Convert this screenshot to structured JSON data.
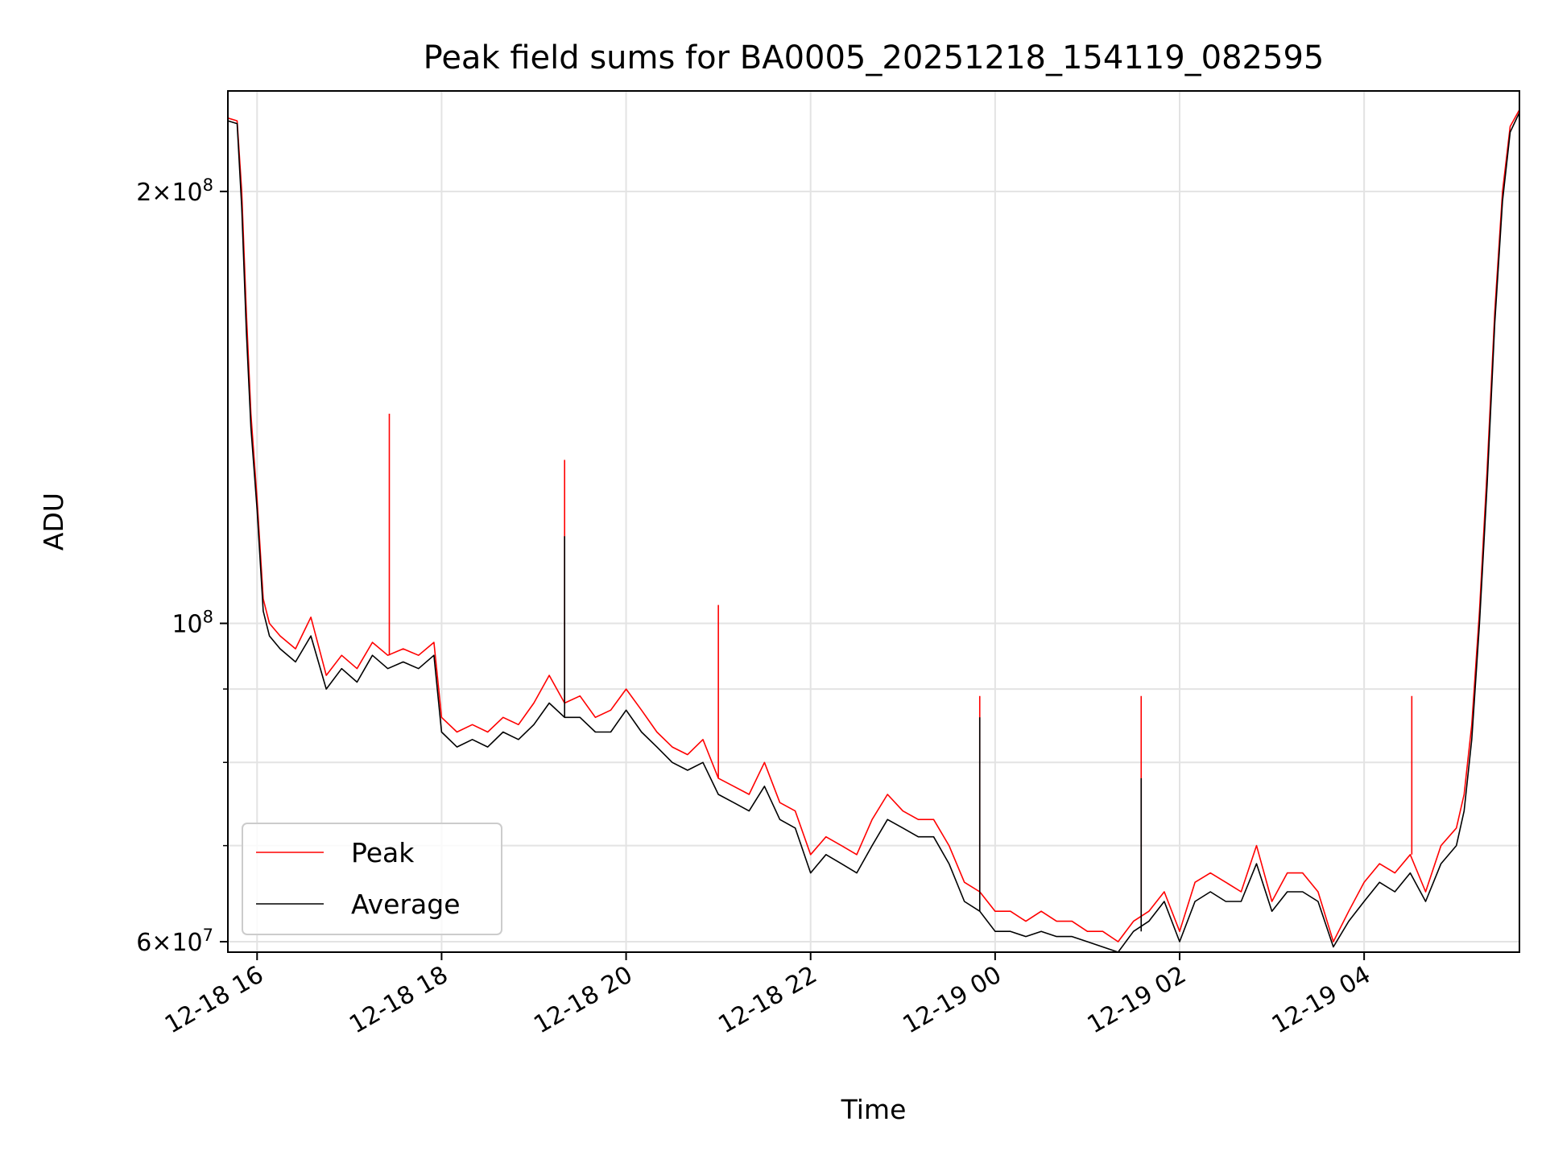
{
  "chart_data": {
    "type": "line",
    "title": "Peak field sums for BA0005_20251218_154119_082595",
    "xlabel": "Time",
    "ylabel": "ADU",
    "xlim": [
      "2025-12-18 15:41",
      "2025-12-19 05:41"
    ],
    "ylim": [
      59000000,
      235000000
    ],
    "yscale": "log",
    "grid": true,
    "legend_position": "lower-left",
    "x_ticks": [
      {
        "value": "2025-12-18 16:00",
        "label": "12-18 16"
      },
      {
        "value": "2025-12-18 18:00",
        "label": "12-18 18"
      },
      {
        "value": "2025-12-18 20:00",
        "label": "12-18 20"
      },
      {
        "value": "2025-12-18 22:00",
        "label": "12-18 22"
      },
      {
        "value": "2025-12-19 00:00",
        "label": "12-19 00"
      },
      {
        "value": "2025-12-19 02:00",
        "label": "12-19 02"
      },
      {
        "value": "2025-12-19 04:00",
        "label": "12-19 04"
      }
    ],
    "y_ticks": [
      {
        "value": 60000000,
        "base": "6",
        "exp": "7"
      },
      {
        "value": 100000000,
        "base": "",
        "exp": "8"
      },
      {
        "value": 200000000,
        "base": "2",
        "exp": "8"
      }
    ],
    "y_minor_ticks": [
      70000000,
      80000000,
      90000000
    ],
    "series": [
      {
        "name": "Peak",
        "color": "#ff0000",
        "x": [
          "2025-12-18 15:41",
          "2025-12-18 15:47",
          "2025-12-18 15:50",
          "2025-12-18 15:53",
          "2025-12-18 15:56",
          "2025-12-18 16:00",
          "2025-12-18 16:04",
          "2025-12-18 16:08",
          "2025-12-18 16:15",
          "2025-12-18 16:25",
          "2025-12-18 16:35",
          "2025-12-18 16:45",
          "2025-12-18 16:55",
          "2025-12-18 17:05",
          "2025-12-18 17:15",
          "2025-12-18 17:25",
          "2025-12-18 17:35",
          "2025-12-18 17:45",
          "2025-12-18 17:55",
          "2025-12-18 18:00",
          "2025-12-18 18:10",
          "2025-12-18 18:20",
          "2025-12-18 18:30",
          "2025-12-18 18:40",
          "2025-12-18 18:50",
          "2025-12-18 19:00",
          "2025-12-18 19:10",
          "2025-12-18 19:20",
          "2025-12-18 19:30",
          "2025-12-18 19:40",
          "2025-12-18 19:50",
          "2025-12-18 20:00",
          "2025-12-18 20:10",
          "2025-12-18 20:20",
          "2025-12-18 20:30",
          "2025-12-18 20:40",
          "2025-12-18 20:50",
          "2025-12-18 21:00",
          "2025-12-18 21:10",
          "2025-12-18 21:20",
          "2025-12-18 21:30",
          "2025-12-18 21:40",
          "2025-12-18 21:50",
          "2025-12-18 22:00",
          "2025-12-18 22:10",
          "2025-12-18 22:20",
          "2025-12-18 22:30",
          "2025-12-18 22:40",
          "2025-12-18 22:50",
          "2025-12-18 23:00",
          "2025-12-18 23:10",
          "2025-12-18 23:20",
          "2025-12-18 23:30",
          "2025-12-18 23:40",
          "2025-12-18 23:50",
          "2025-12-19 00:00",
          "2025-12-19 00:10",
          "2025-12-19 00:20",
          "2025-12-19 00:30",
          "2025-12-19 00:40",
          "2025-12-19 00:50",
          "2025-12-19 01:00",
          "2025-12-19 01:10",
          "2025-12-19 01:20",
          "2025-12-19 01:30",
          "2025-12-19 01:40",
          "2025-12-19 01:50",
          "2025-12-19 02:00",
          "2025-12-19 02:10",
          "2025-12-19 02:20",
          "2025-12-19 02:30",
          "2025-12-19 02:40",
          "2025-12-19 02:50",
          "2025-12-19 03:00",
          "2025-12-19 03:10",
          "2025-12-19 03:20",
          "2025-12-19 03:30",
          "2025-12-19 03:40",
          "2025-12-19 03:50",
          "2025-12-19 04:00",
          "2025-12-19 04:10",
          "2025-12-19 04:20",
          "2025-12-19 04:30",
          "2025-12-19 04:40",
          "2025-12-19 04:50",
          "2025-12-19 05:00",
          "2025-12-19 05:05",
          "2025-12-19 05:10",
          "2025-12-19 05:15",
          "2025-12-19 05:20",
          "2025-12-19 05:25",
          "2025-12-19 05:30",
          "2025-12-19 05:35",
          "2025-12-19 05:41"
        ],
        "values": [
          225000000,
          224000000,
          200000000,
          165000000,
          140000000,
          122000000,
          104000000,
          100000000,
          98000000,
          96000000,
          101000000,
          92000000,
          95000000,
          93000000,
          97000000,
          95000000,
          96000000,
          95000000,
          97000000,
          86000000,
          84000000,
          85000000,
          84000000,
          86000000,
          85000000,
          88000000,
          92000000,
          88000000,
          89000000,
          86000000,
          87000000,
          90000000,
          87000000,
          84000000,
          82000000,
          81000000,
          83000000,
          78000000,
          77000000,
          76000000,
          80000000,
          75000000,
          74000000,
          69000000,
          71000000,
          70000000,
          69000000,
          73000000,
          76000000,
          74000000,
          73000000,
          73000000,
          70000000,
          66000000,
          65000000,
          63000000,
          63000000,
          62000000,
          63000000,
          62000000,
          62000000,
          61000000,
          61000000,
          60000000,
          62000000,
          63000000,
          65000000,
          61000000,
          66000000,
          67000000,
          66000000,
          65000000,
          70000000,
          64000000,
          67000000,
          67000000,
          65000000,
          60000000,
          63000000,
          66000000,
          68000000,
          67000000,
          69000000,
          65000000,
          70000000,
          72000000,
          76000000,
          85000000,
          102000000,
          128000000,
          165000000,
          200000000,
          222000000,
          228000000
        ],
        "spikes": [
          {
            "x": "2025-12-18 17:26",
            "value": 140000000
          },
          {
            "x": "2025-12-18 19:20",
            "value": 130000000
          },
          {
            "x": "2025-12-18 21:00",
            "value": 103000000
          },
          {
            "x": "2025-12-18 23:50",
            "value": 89000000
          },
          {
            "x": "2025-12-19 01:35",
            "value": 89000000
          },
          {
            "x": "2025-12-19 04:31",
            "value": 89000000
          }
        ]
      },
      {
        "name": "Average",
        "color": "#000000",
        "x": [
          "2025-12-18 15:41",
          "2025-12-18 15:47",
          "2025-12-18 15:50",
          "2025-12-18 15:53",
          "2025-12-18 15:56",
          "2025-12-18 16:00",
          "2025-12-18 16:04",
          "2025-12-18 16:08",
          "2025-12-18 16:15",
          "2025-12-18 16:25",
          "2025-12-18 16:35",
          "2025-12-18 16:45",
          "2025-12-18 16:55",
          "2025-12-18 17:05",
          "2025-12-18 17:15",
          "2025-12-18 17:25",
          "2025-12-18 17:35",
          "2025-12-18 17:45",
          "2025-12-18 17:55",
          "2025-12-18 18:00",
          "2025-12-18 18:10",
          "2025-12-18 18:20",
          "2025-12-18 18:30",
          "2025-12-18 18:40",
          "2025-12-18 18:50",
          "2025-12-18 19:00",
          "2025-12-18 19:10",
          "2025-12-18 19:20",
          "2025-12-18 19:30",
          "2025-12-18 19:40",
          "2025-12-18 19:50",
          "2025-12-18 20:00",
          "2025-12-18 20:10",
          "2025-12-18 20:20",
          "2025-12-18 20:30",
          "2025-12-18 20:40",
          "2025-12-18 20:50",
          "2025-12-18 21:00",
          "2025-12-18 21:10",
          "2025-12-18 21:20",
          "2025-12-18 21:30",
          "2025-12-18 21:40",
          "2025-12-18 21:50",
          "2025-12-18 22:00",
          "2025-12-18 22:10",
          "2025-12-18 22:20",
          "2025-12-18 22:30",
          "2025-12-18 22:40",
          "2025-12-18 22:50",
          "2025-12-18 23:00",
          "2025-12-18 23:10",
          "2025-12-18 23:20",
          "2025-12-18 23:30",
          "2025-12-18 23:40",
          "2025-12-18 23:50",
          "2025-12-19 00:00",
          "2025-12-19 00:10",
          "2025-12-19 00:20",
          "2025-12-19 00:30",
          "2025-12-19 00:40",
          "2025-12-19 00:50",
          "2025-12-19 01:00",
          "2025-12-19 01:10",
          "2025-12-19 01:20",
          "2025-12-19 01:30",
          "2025-12-19 01:40",
          "2025-12-19 01:50",
          "2025-12-19 02:00",
          "2025-12-19 02:10",
          "2025-12-19 02:20",
          "2025-12-19 02:30",
          "2025-12-19 02:40",
          "2025-12-19 02:50",
          "2025-12-19 03:00",
          "2025-12-19 03:10",
          "2025-12-19 03:20",
          "2025-12-19 03:30",
          "2025-12-19 03:40",
          "2025-12-19 03:50",
          "2025-12-19 04:00",
          "2025-12-19 04:10",
          "2025-12-19 04:20",
          "2025-12-19 04:30",
          "2025-12-19 04:40",
          "2025-12-19 04:50",
          "2025-12-19 05:00",
          "2025-12-19 05:05",
          "2025-12-19 05:10",
          "2025-12-19 05:15",
          "2025-12-19 05:20",
          "2025-12-19 05:25",
          "2025-12-19 05:30",
          "2025-12-19 05:35",
          "2025-12-19 05:41"
        ],
        "values": [
          224000000,
          223000000,
          195000000,
          160000000,
          137000000,
          120000000,
          102000000,
          98000000,
          96000000,
          94000000,
          98000000,
          90000000,
          93000000,
          91000000,
          95000000,
          93000000,
          94000000,
          93000000,
          95000000,
          84000000,
          82000000,
          83000000,
          82000000,
          84000000,
          83000000,
          85000000,
          88000000,
          86000000,
          86000000,
          84000000,
          84000000,
          87000000,
          84000000,
          82000000,
          80000000,
          79000000,
          80000000,
          76000000,
          75000000,
          74000000,
          77000000,
          73000000,
          72000000,
          67000000,
          69000000,
          68000000,
          67000000,
          70000000,
          73000000,
          72000000,
          71000000,
          71000000,
          68000000,
          64000000,
          63000000,
          61000000,
          61000000,
          60500000,
          61000000,
          60500000,
          60500000,
          60000000,
          59500000,
          59000000,
          61000000,
          62000000,
          64000000,
          60000000,
          64000000,
          65000000,
          64000000,
          64000000,
          68000000,
          63000000,
          65000000,
          65000000,
          64000000,
          59500000,
          62000000,
          64000000,
          66000000,
          65000000,
          67000000,
          64000000,
          68000000,
          70000000,
          74000000,
          83000000,
          100000000,
          125000000,
          162000000,
          197000000,
          220000000,
          227000000
        ],
        "spikes": [
          {
            "x": "2025-12-18 19:20",
            "value": 115000000
          },
          {
            "x": "2025-12-18 23:50",
            "value": 86000000
          },
          {
            "x": "2025-12-19 01:35",
            "value": 78000000
          }
        ]
      }
    ]
  }
}
